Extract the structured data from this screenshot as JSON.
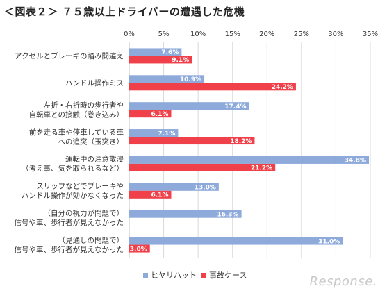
{
  "title": "＜図表２＞ ７５歳以上ドライバーの遭遇した危機",
  "watermark": "Response.",
  "chart_data": {
    "type": "bar",
    "orientation": "horizontal",
    "categories": [
      [
        "アクセルとブレーキの踏み間違え"
      ],
      [
        "ハンドル操作ミス"
      ],
      [
        "左折・右折時の歩行者や",
        "自転車との接触（巻き込み）"
      ],
      [
        "前を走る車や停車している車",
        "への追突（玉突き）"
      ],
      [
        "運転中の注意散漫",
        "（考え事、気を取られるなど）"
      ],
      [
        "スリップなどでブレーキや",
        "ハンドル操作が効かなくなった"
      ],
      [
        "（自分の視力が問題で）",
        "信号や車、歩行者が見えなかった"
      ],
      [
        "（見通しの問題で）",
        "信号や車、歩行者が見えなかった"
      ]
    ],
    "series": [
      {
        "name": "ヒヤリハット",
        "color": "#8eaadb",
        "values": [
          7.6,
          10.9,
          17.4,
          7.1,
          34.8,
          13.0,
          16.3,
          31.0
        ]
      },
      {
        "name": "事故ケース",
        "color": "#f0404a",
        "values": [
          9.1,
          24.2,
          6.1,
          18.2,
          21.2,
          6.1,
          null,
          3.0
        ]
      }
    ],
    "x_ticks": [
      "0%",
      "5%",
      "10%",
      "15%",
      "20%",
      "25%",
      "30%",
      "35%"
    ],
    "xlim": [
      0,
      35
    ],
    "grid": true,
    "legend_position": "bottom"
  }
}
